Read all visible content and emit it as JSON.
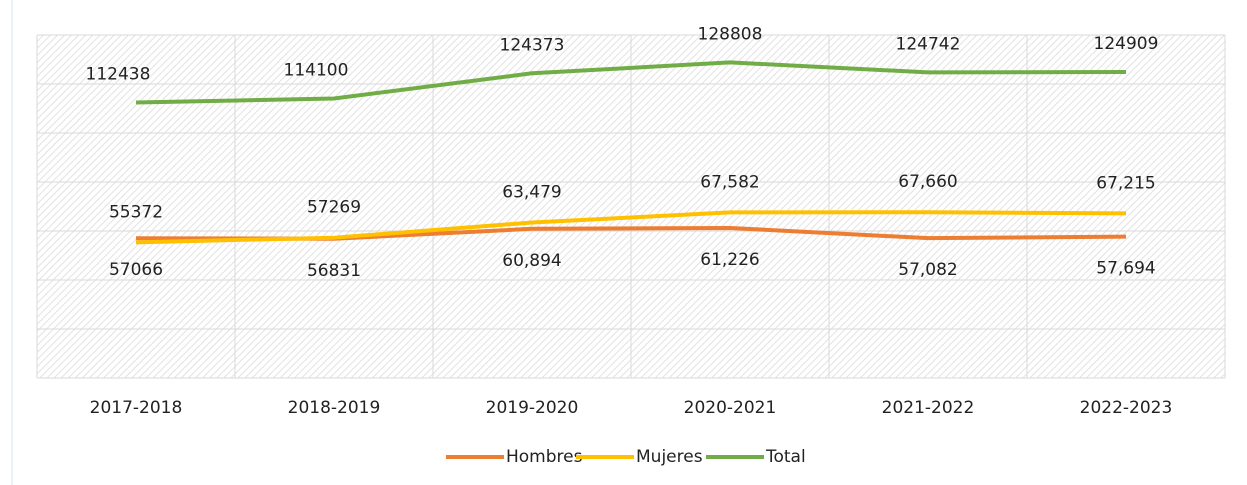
{
  "chart_data": {
    "type": "line",
    "categories": [
      "2017-2018",
      "2018-2019",
      "2019-2020",
      "2020-2021",
      "2021-2022",
      "2022-2023"
    ],
    "series": [
      {
        "name": "Hombres",
        "color": "#ED7D31",
        "values": [
          57066,
          56831,
          60894,
          61226,
          57082,
          57694
        ],
        "value_labels": [
          "57066",
          "56831",
          "60,894",
          "61,226",
          "57,082",
          "57,694"
        ]
      },
      {
        "name": "Mujeres",
        "color": "#FFC000",
        "values": [
          55372,
          57269,
          63479,
          67582,
          67660,
          67215
        ],
        "value_labels": [
          "55372",
          "57269",
          "63,479",
          "67,582",
          "67,660",
          "67,215"
        ]
      },
      {
        "name": "Total",
        "color": "#70AD47",
        "values": [
          112438,
          114100,
          124373,
          128808,
          124742,
          124909
        ]
      }
    ],
    "ylim": [
      0,
      140000
    ],
    "yticks": [
      0,
      20000,
      40000,
      60000,
      80000,
      100000,
      120000,
      140000
    ],
    "grid": true,
    "legend": "bottom"
  }
}
